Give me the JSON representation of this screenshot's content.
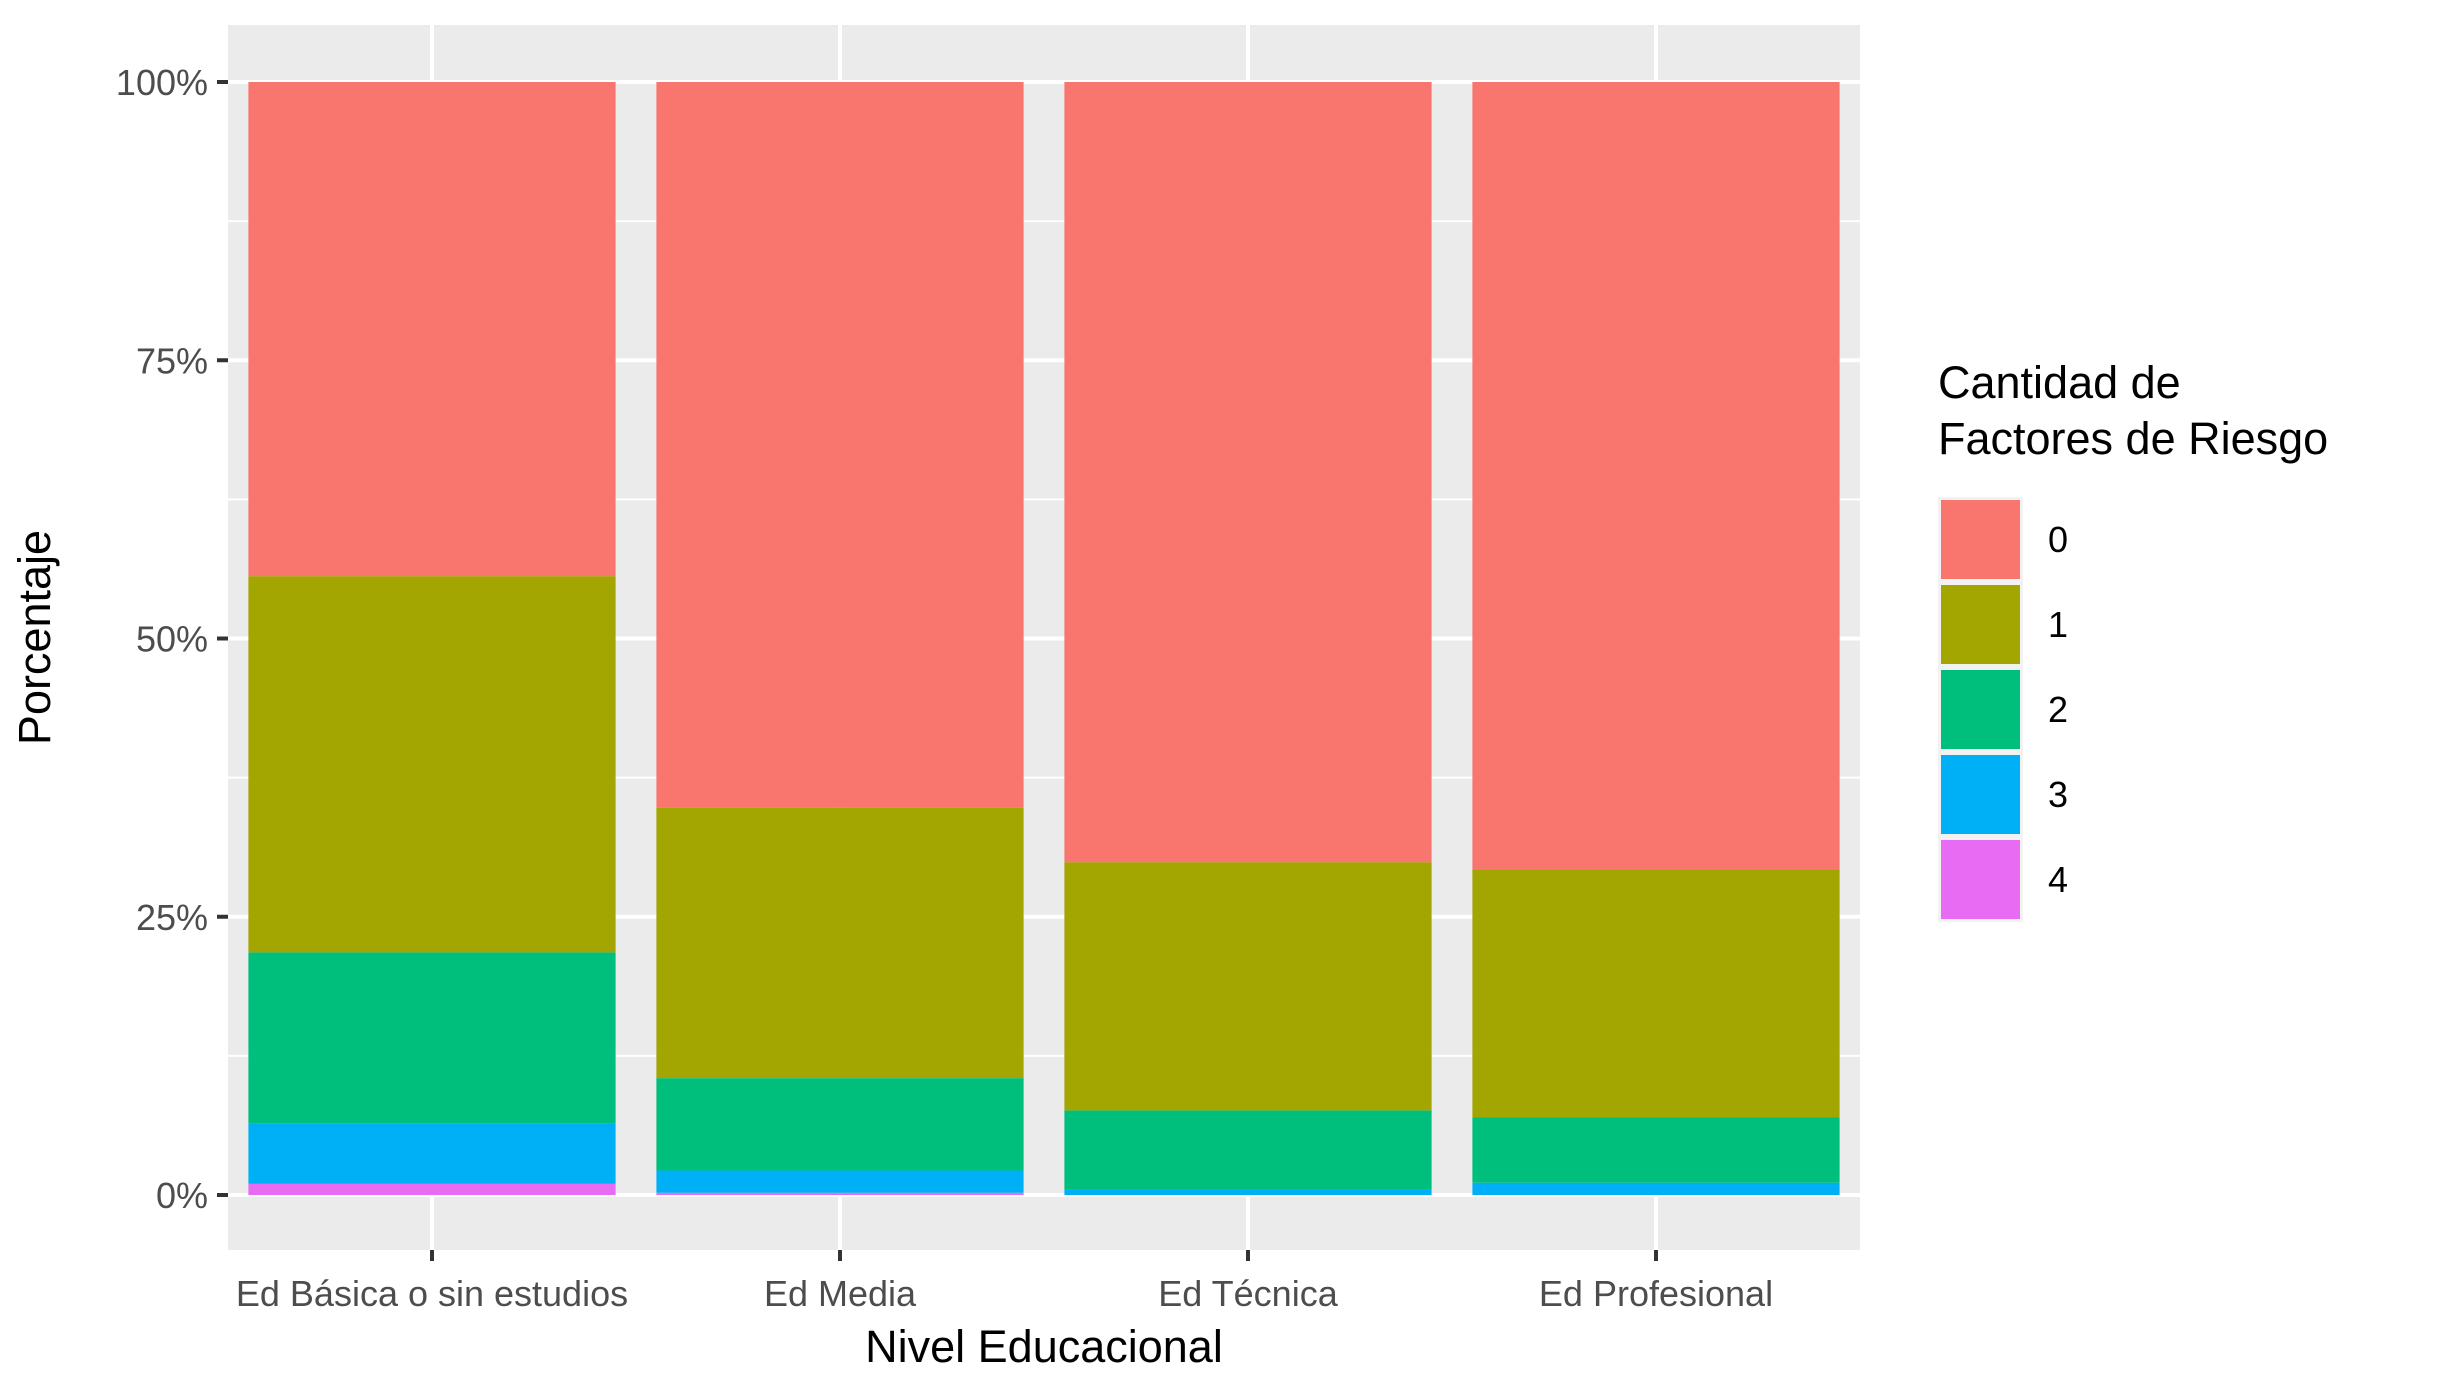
{
  "chart_data": {
    "type": "bar",
    "stacked": "percent",
    "xlabel": "Nivel Educacional",
    "ylabel": "Porcentaje",
    "categories": [
      "Ed Básica o sin estudios",
      "Ed Media",
      "Ed Técnica",
      "Ed Profesional"
    ],
    "y_ticks": [
      "0%",
      "25%",
      "50%",
      "75%",
      "100%"
    ],
    "ylim": [
      0,
      100
    ],
    "legend": {
      "title_lines": [
        "Cantidad de",
        "Factores de Riesgo"
      ],
      "position": "right"
    },
    "series": [
      {
        "name": "4",
        "color": "#E76BF3",
        "values": [
          1.0,
          0.2,
          0.0,
          0.0
        ]
      },
      {
        "name": "3",
        "color": "#00B0F6",
        "values": [
          5.4,
          2.0,
          0.5,
          1.1
        ]
      },
      {
        "name": "2",
        "color": "#00BF7D",
        "values": [
          15.4,
          8.3,
          7.1,
          5.9
        ]
      },
      {
        "name": "1",
        "color": "#A3A500",
        "values": [
          33.8,
          24.3,
          22.3,
          22.2
        ]
      },
      {
        "name": "0",
        "color": "#F8766D",
        "values": [
          44.4,
          65.2,
          70.1,
          70.8
        ]
      }
    ],
    "grid": true,
    "panel_background": "#EBEBEB"
  }
}
